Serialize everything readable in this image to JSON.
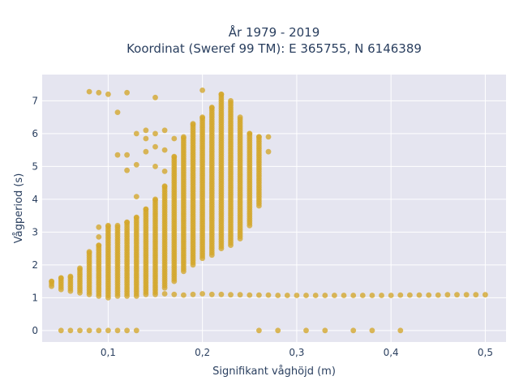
{
  "chart_data": {
    "type": "scatter",
    "title_line1": "År 1979 - 2019",
    "title_line2": "Koordinat (Sweref 99 TM): E 365755, N 6146389",
    "xlabel": "Signifikant våghöjd (m)",
    "ylabel": "Vågperiod (s)",
    "xlim": [
      0.03,
      0.522
    ],
    "ylim": [
      -0.35,
      7.8
    ],
    "x_ticks": [
      0.1,
      0.2,
      0.3,
      0.4,
      0.5
    ],
    "x_tick_labels": [
      "0,1",
      "0,2",
      "0,3",
      "0,4",
      "0,5"
    ],
    "y_ticks": [
      0,
      1,
      2,
      3,
      4,
      5,
      6,
      7
    ],
    "y_tick_labels": [
      "0",
      "1",
      "2",
      "3",
      "4",
      "5",
      "6",
      "7"
    ],
    "grid": true,
    "colors": {
      "marker": "#d4a62a",
      "plot_bg": "#e5e5f0",
      "grid": "#ffffff",
      "text": "#2a3f5f"
    },
    "columns": [
      {
        "x": 0.04,
        "range": [
          1.35,
          1.5
        ]
      },
      {
        "x": 0.05,
        "range": [
          1.25,
          1.6
        ]
      },
      {
        "x": 0.06,
        "range": [
          1.2,
          1.65
        ]
      },
      {
        "x": 0.07,
        "range": [
          1.15,
          1.9
        ]
      },
      {
        "x": 0.08,
        "range": [
          1.1,
          2.4
        ]
      },
      {
        "x": 0.09,
        "range": [
          1.05,
          2.6
        ]
      },
      {
        "x": 0.1,
        "range": [
          1.0,
          3.2
        ]
      },
      {
        "x": 0.11,
        "range": [
          1.05,
          3.2
        ]
      },
      {
        "x": 0.12,
        "range": [
          1.05,
          3.3
        ]
      },
      {
        "x": 0.13,
        "range": [
          1.05,
          3.45
        ]
      },
      {
        "x": 0.14,
        "range": [
          1.1,
          3.7
        ]
      },
      {
        "x": 0.15,
        "range": [
          1.1,
          4.0
        ]
      },
      {
        "x": 0.16,
        "range": [
          1.3,
          4.4
        ]
      },
      {
        "x": 0.17,
        "range": [
          1.5,
          5.3
        ]
      },
      {
        "x": 0.18,
        "range": [
          1.8,
          5.9
        ]
      },
      {
        "x": 0.19,
        "range": [
          2.0,
          6.3
        ]
      },
      {
        "x": 0.2,
        "range": [
          2.2,
          6.5
        ]
      },
      {
        "x": 0.21,
        "range": [
          2.3,
          6.8
        ]
      },
      {
        "x": 0.22,
        "range": [
          2.5,
          7.2
        ]
      },
      {
        "x": 0.23,
        "range": [
          2.6,
          7.0
        ]
      },
      {
        "x": 0.24,
        "range": [
          2.8,
          6.5
        ]
      },
      {
        "x": 0.25,
        "range": [
          3.2,
          6.0
        ]
      },
      {
        "x": 0.26,
        "range": [
          3.8,
          5.9
        ]
      }
    ],
    "baseline": [
      {
        "x": 0.16,
        "y": 1.12
      },
      {
        "x": 0.17,
        "y": 1.1
      },
      {
        "x": 0.18,
        "y": 1.08
      },
      {
        "x": 0.19,
        "y": 1.1
      },
      {
        "x": 0.2,
        "y": 1.12
      },
      {
        "x": 0.21,
        "y": 1.1
      },
      {
        "x": 0.22,
        "y": 1.1
      },
      {
        "x": 0.23,
        "y": 1.09
      },
      {
        "x": 0.24,
        "y": 1.09
      },
      {
        "x": 0.25,
        "y": 1.08
      },
      {
        "x": 0.26,
        "y": 1.08
      },
      {
        "x": 0.27,
        "y": 1.08
      },
      {
        "x": 0.28,
        "y": 1.07
      },
      {
        "x": 0.29,
        "y": 1.07
      },
      {
        "x": 0.3,
        "y": 1.07
      },
      {
        "x": 0.31,
        "y": 1.07
      },
      {
        "x": 0.32,
        "y": 1.07
      },
      {
        "x": 0.33,
        "y": 1.07
      },
      {
        "x": 0.34,
        "y": 1.07
      },
      {
        "x": 0.35,
        "y": 1.07
      },
      {
        "x": 0.36,
        "y": 1.07
      },
      {
        "x": 0.37,
        "y": 1.07
      },
      {
        "x": 0.38,
        "y": 1.07
      },
      {
        "x": 0.39,
        "y": 1.07
      },
      {
        "x": 0.4,
        "y": 1.07
      },
      {
        "x": 0.41,
        "y": 1.08
      },
      {
        "x": 0.42,
        "y": 1.08
      },
      {
        "x": 0.43,
        "y": 1.08
      },
      {
        "x": 0.44,
        "y": 1.08
      },
      {
        "x": 0.45,
        "y": 1.08
      },
      {
        "x": 0.46,
        "y": 1.09
      },
      {
        "x": 0.47,
        "y": 1.09
      },
      {
        "x": 0.48,
        "y": 1.09
      },
      {
        "x": 0.49,
        "y": 1.09
      },
      {
        "x": 0.5,
        "y": 1.09
      }
    ],
    "outliers": [
      {
        "x": 0.08,
        "y": 7.28
      },
      {
        "x": 0.09,
        "y": 7.25
      },
      {
        "x": 0.1,
        "y": 7.2
      },
      {
        "x": 0.12,
        "y": 7.25
      },
      {
        "x": 0.11,
        "y": 6.65
      },
      {
        "x": 0.15,
        "y": 7.1
      },
      {
        "x": 0.2,
        "y": 7.32
      },
      {
        "x": 0.11,
        "y": 5.35
      },
      {
        "x": 0.12,
        "y": 5.35
      },
      {
        "x": 0.12,
        "y": 4.88
      },
      {
        "x": 0.13,
        "y": 5.05
      },
      {
        "x": 0.13,
        "y": 6.0
      },
      {
        "x": 0.14,
        "y": 6.1
      },
      {
        "x": 0.14,
        "y": 5.85
      },
      {
        "x": 0.14,
        "y": 5.45
      },
      {
        "x": 0.15,
        "y": 6.0
      },
      {
        "x": 0.15,
        "y": 5.6
      },
      {
        "x": 0.15,
        "y": 5.0
      },
      {
        "x": 0.16,
        "y": 6.1
      },
      {
        "x": 0.16,
        "y": 5.5
      },
      {
        "x": 0.16,
        "y": 4.85
      },
      {
        "x": 0.17,
        "y": 5.85
      },
      {
        "x": 0.13,
        "y": 4.08
      },
      {
        "x": 0.09,
        "y": 2.85
      },
      {
        "x": 0.09,
        "y": 3.15
      },
      {
        "x": 0.27,
        "y": 5.9
      },
      {
        "x": 0.27,
        "y": 5.45
      },
      {
        "x": 0.05,
        "y": 0
      },
      {
        "x": 0.06,
        "y": 0
      },
      {
        "x": 0.07,
        "y": 0
      },
      {
        "x": 0.08,
        "y": 0
      },
      {
        "x": 0.09,
        "y": 0
      },
      {
        "x": 0.1,
        "y": 0
      },
      {
        "x": 0.11,
        "y": 0
      },
      {
        "x": 0.12,
        "y": 0
      },
      {
        "x": 0.13,
        "y": 0
      },
      {
        "x": 0.26,
        "y": 0
      },
      {
        "x": 0.28,
        "y": 0
      },
      {
        "x": 0.31,
        "y": 0
      },
      {
        "x": 0.33,
        "y": 0
      },
      {
        "x": 0.36,
        "y": 0
      },
      {
        "x": 0.38,
        "y": 0
      },
      {
        "x": 0.41,
        "y": 0
      }
    ]
  }
}
